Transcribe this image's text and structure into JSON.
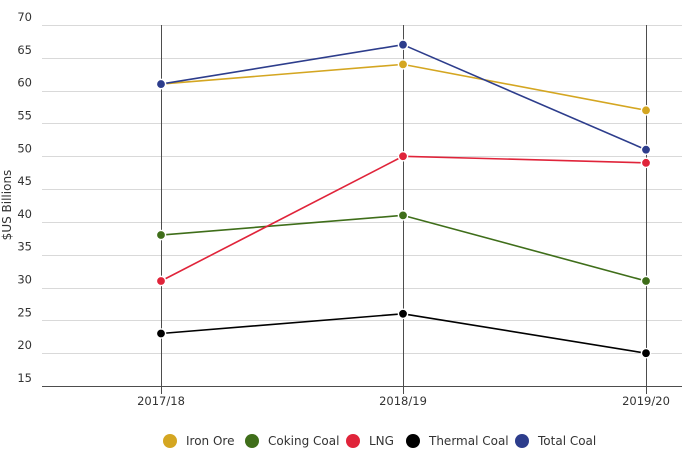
{
  "chart_data": {
    "type": "line",
    "title": "",
    "xlabel": "",
    "ylabel": "$US Billions",
    "categories": [
      "2017/18",
      "2018/19",
      "2019/20"
    ],
    "ylim": [
      15,
      70
    ],
    "yticks": [
      15,
      20,
      25,
      30,
      35,
      40,
      45,
      50,
      55,
      60,
      65,
      70
    ],
    "grid": true,
    "legend_position": "bottom",
    "series": [
      {
        "name": "Iron Ore",
        "color": "#d4a621",
        "values": [
          61,
          64,
          57
        ]
      },
      {
        "name": "Coking Coal",
        "color": "#3f6e1a",
        "values": [
          38,
          41,
          31
        ]
      },
      {
        "name": "LNG",
        "color": "#e0243a",
        "values": [
          31,
          50,
          49
        ]
      },
      {
        "name": "Thermal Coal",
        "color": "#000000",
        "values": [
          23,
          26,
          20
        ]
      },
      {
        "name": "Total Coal",
        "color": "#2d3d8c",
        "values": [
          61,
          67,
          51
        ]
      }
    ]
  }
}
